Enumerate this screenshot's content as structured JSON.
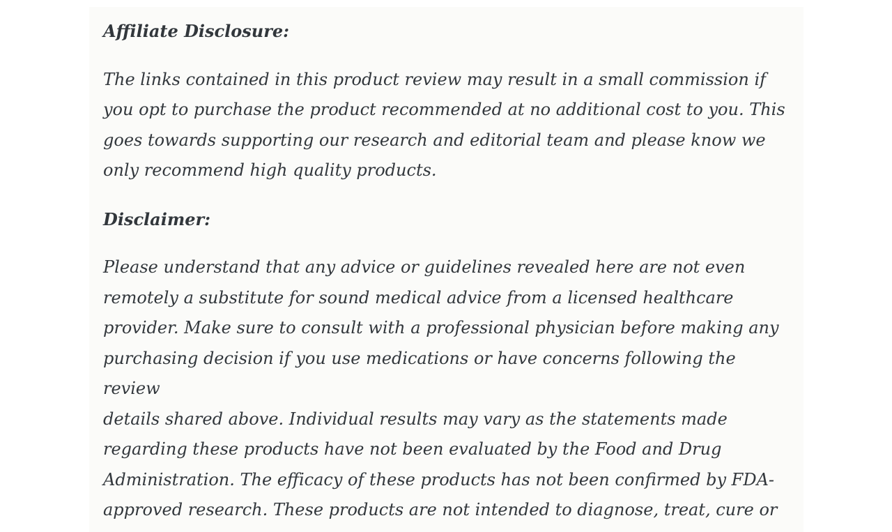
{
  "page": {
    "background": "#ffffff",
    "content_background": "#fbfbf9",
    "text_color": "#32373c"
  },
  "content": {
    "affiliate_heading": "Affiliate Disclosure:",
    "affiliate_paragraph": "The links contained in this product review may result in a small commission if\nyou opt to purchase the product recommended at no additional cost to you. This\ngoes towards supporting our research and editorial team and please know we\nonly recommend high quality products.",
    "disclaimer_heading": "Disclaimer:",
    "disclaimer_paragraph": "Please understand that any advice or guidelines revealed here are not even\nremotely a substitute for sound medical advice from a licensed healthcare\nprovider. Make sure to consult with a professional physician before making any\npurchasing decision if you use medications or have concerns following the review\ndetails shared above. Individual results may vary as the statements made\nregarding these products have not been evaluated by the Food and Drug\nAdministration. The efficacy of these products has not been confirmed by FDA-\napproved research. These products are not intended to diagnose, treat, cure or\nprevent any disease."
  }
}
